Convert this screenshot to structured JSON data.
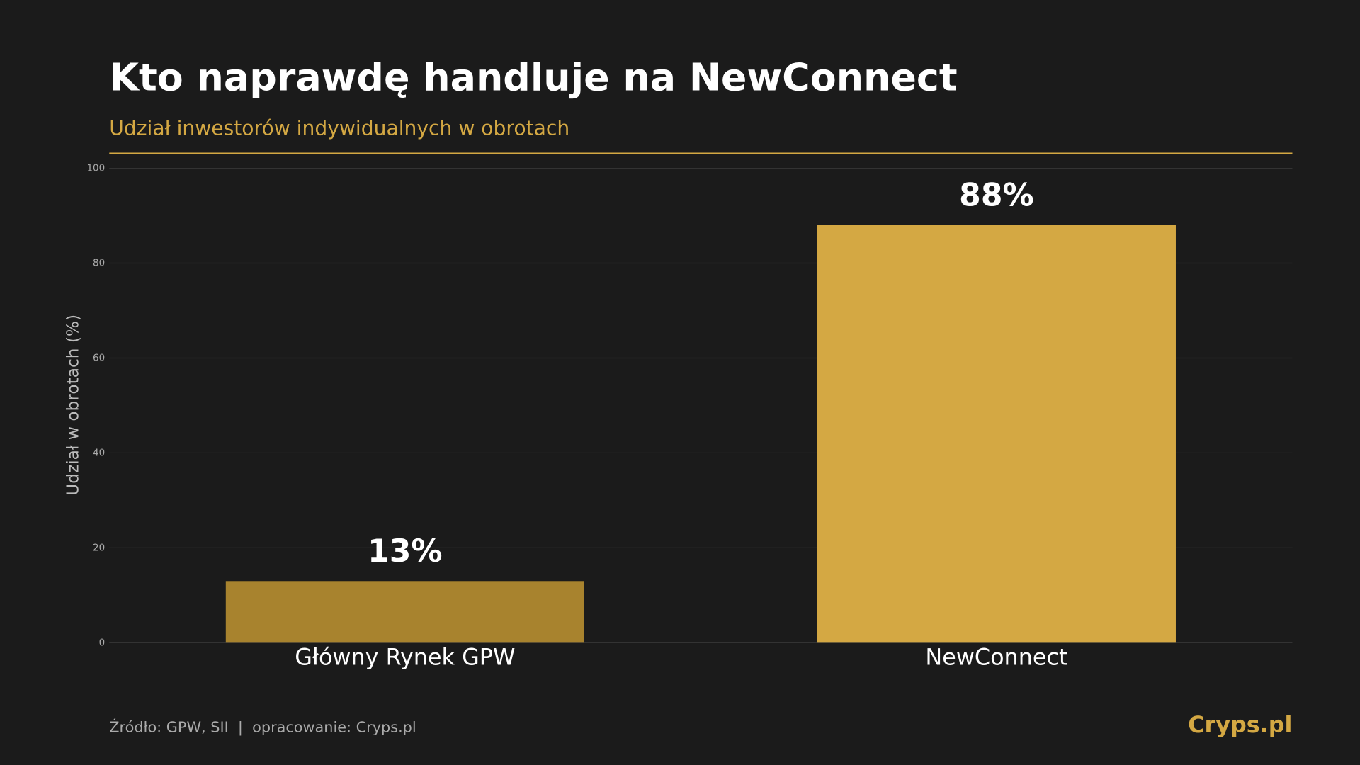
{
  "chart_data": {
    "type": "bar",
    "title": "Kto naprawdę handluje na NewConnect",
    "subtitle": "Udział inwestorów indywidualnych w obrotach",
    "y_label": "Udział w obrotach (%)",
    "categories": [
      "Główny Rynek GPW",
      "NewConnect"
    ],
    "values": [
      13,
      88
    ],
    "value_labels": [
      "13%",
      "88%"
    ],
    "colors": [
      "#a8832e",
      "#d4a843"
    ],
    "ylim": [
      0,
      100
    ],
    "yticks": [
      0,
      20,
      40,
      60,
      80,
      100
    ],
    "grid": true,
    "source": "Źródło: GPW, SII  |  opracowanie: Cryps.pl",
    "brand": "Cryps.pl"
  }
}
